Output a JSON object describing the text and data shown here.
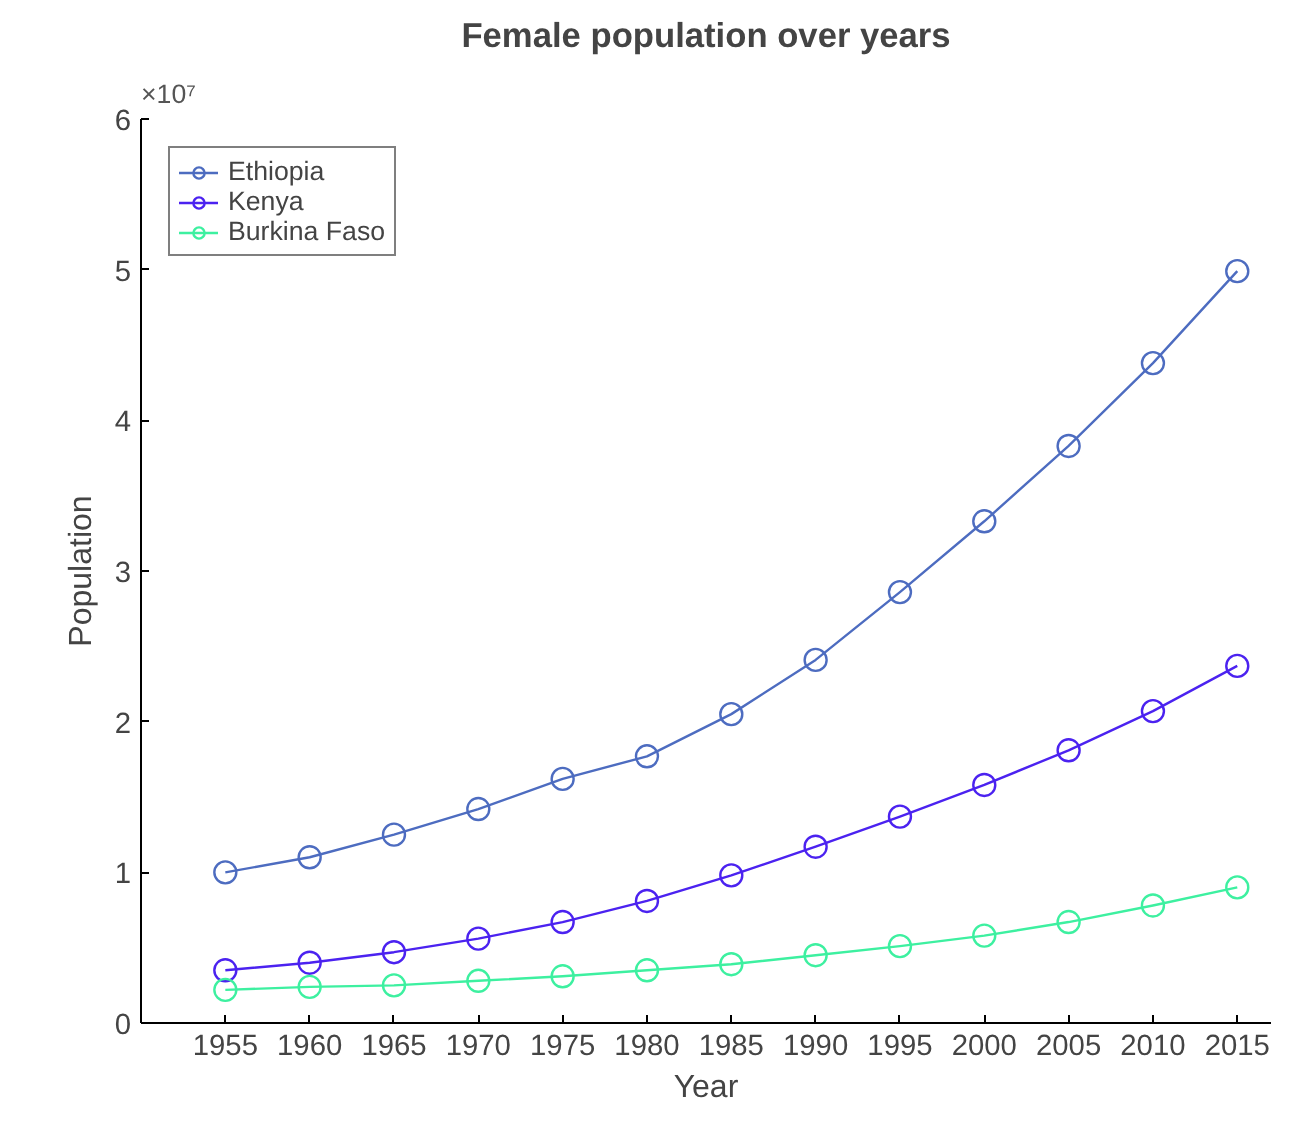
{
  "chart_data": {
    "type": "line",
    "title": "Female population over years",
    "xlabel": "Year",
    "ylabel": "Population",
    "annotations": [
      "×10⁷"
    ],
    "x": [
      1955,
      1960,
      1965,
      1970,
      1975,
      1980,
      1985,
      1990,
      1995,
      2000,
      2005,
      2010,
      2015
    ],
    "series": [
      {
        "name": "Ethiopia",
        "color": "#4d6cc0",
        "values": [
          1.0,
          1.1,
          1.25,
          1.42,
          1.62,
          1.77,
          2.05,
          2.41,
          2.86,
          3.33,
          3.83,
          4.38,
          4.99
        ]
      },
      {
        "name": "Kenya",
        "color": "#4b22f0",
        "values": [
          0.35,
          0.4,
          0.47,
          0.56,
          0.67,
          0.81,
          0.98,
          1.17,
          1.37,
          1.58,
          1.81,
          2.07,
          2.37
        ]
      },
      {
        "name": "Burkina Faso",
        "color": "#3df0a0",
        "values": [
          0.22,
          0.24,
          0.25,
          0.28,
          0.31,
          0.35,
          0.39,
          0.45,
          0.51,
          0.58,
          0.67,
          0.78,
          0.9
        ]
      }
    ],
    "xlim": [
      1950,
      2017
    ],
    "ylim": [
      0,
      6
    ],
    "xticks": [
      1955,
      1960,
      1965,
      1970,
      1975,
      1980,
      1985,
      1990,
      1995,
      2000,
      2005,
      2010,
      2015
    ],
    "yticks": [
      0,
      1,
      2,
      3,
      4,
      5,
      6
    ],
    "grid": false,
    "legend": "top left",
    "marker": "circle",
    "line_style": "solid"
  }
}
